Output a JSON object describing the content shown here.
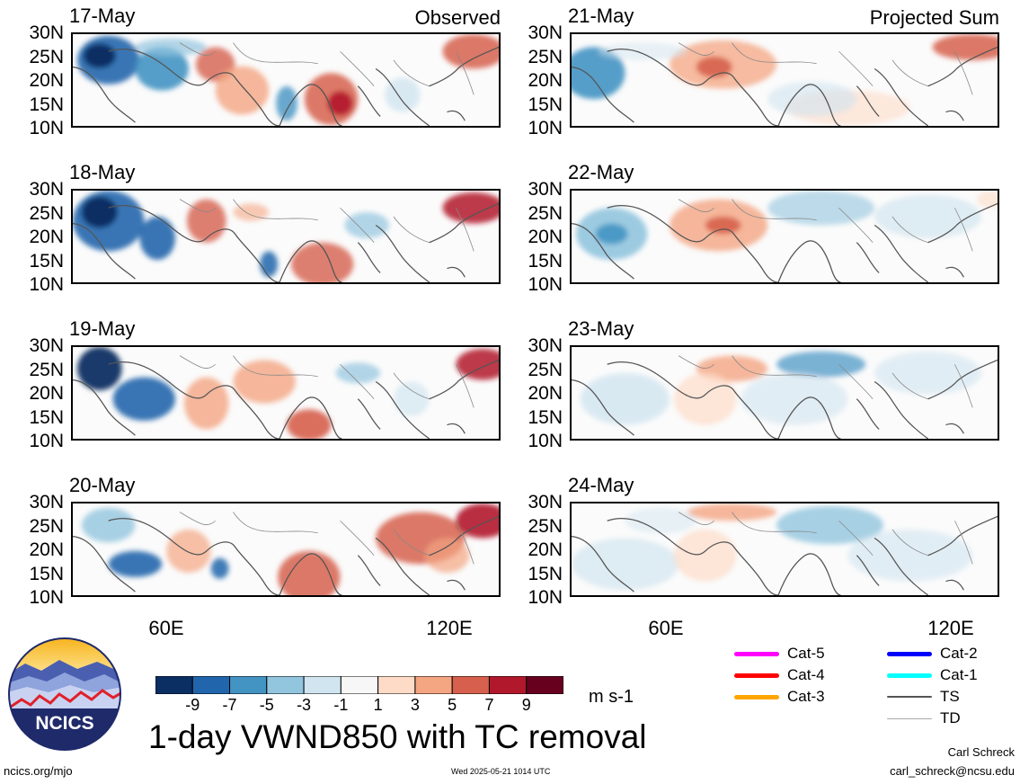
{
  "panels": [
    {
      "date": "17-May",
      "tag": "Observed",
      "column": "observed"
    },
    {
      "date": "18-May",
      "tag": "",
      "column": "observed"
    },
    {
      "date": "19-May",
      "tag": "",
      "column": "observed"
    },
    {
      "date": "20-May",
      "tag": "",
      "column": "observed"
    },
    {
      "date": "21-May",
      "tag": "Projected Sum",
      "column": "projected"
    },
    {
      "date": "22-May",
      "tag": "",
      "column": "projected"
    },
    {
      "date": "23-May",
      "tag": "",
      "column": "projected"
    },
    {
      "date": "24-May",
      "tag": "",
      "column": "projected"
    }
  ],
  "axes": {
    "y_ticks": [
      "30N",
      "25N",
      "20N",
      "15N",
      "10N"
    ],
    "x_ticks": [
      "60E",
      "120E"
    ]
  },
  "colorbar": {
    "labels": [
      "-9",
      "-7",
      "-5",
      "-3",
      "-1",
      "1",
      "3",
      "5",
      "7",
      "9"
    ],
    "colors": [
      "#0b2f63",
      "#2166ac",
      "#4393c3",
      "#92c5de",
      "#d1e5f0",
      "#f7f7f7",
      "#fddbc7",
      "#f4a582",
      "#d6604d",
      "#b2182b",
      "#67001f"
    ],
    "units": "m s-1"
  },
  "tc_legend": {
    "items": [
      {
        "label": "Cat-5",
        "color": "#ff00ff",
        "style": "thick"
      },
      {
        "label": "Cat-4",
        "color": "#ff0000",
        "style": "thick"
      },
      {
        "label": "Cat-3",
        "color": "#ffa500",
        "style": "thick"
      },
      {
        "label": "Cat-2",
        "color": "#0000ff",
        "style": "thick"
      },
      {
        "label": "Cat-1",
        "color": "#00ffff",
        "style": "thick"
      },
      {
        "label": "TS",
        "color": "#555555",
        "style": "medium"
      },
      {
        "label": "TD",
        "color": "#aaaaaa",
        "style": "thin"
      }
    ]
  },
  "logo": {
    "text": "NCICS"
  },
  "main_title": "1-day VWND850 with TC removal",
  "footer": {
    "url": "ncics.org/mjo",
    "timestamp": "Wed 2025-05-21 1014 UTC",
    "author": "Carl Schreck",
    "email": "carl_schreck@ncsu.edu"
  }
}
